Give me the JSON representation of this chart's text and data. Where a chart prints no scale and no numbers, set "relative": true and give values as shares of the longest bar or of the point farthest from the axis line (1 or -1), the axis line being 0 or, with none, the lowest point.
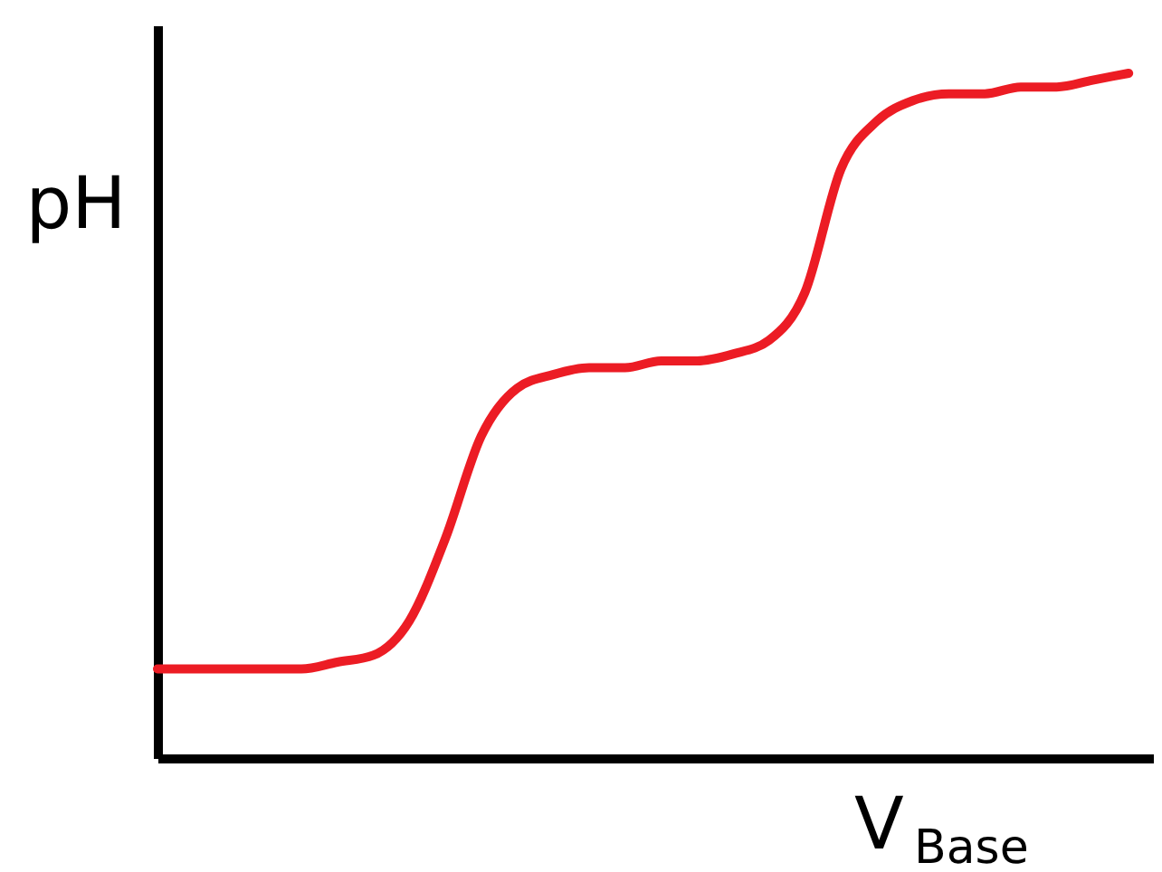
{
  "chart_data": {
    "type": "line",
    "relative": true,
    "xlabel": "V$_{Base}$",
    "ylabel": "pH",
    "grid": false,
    "tick_labels": false,
    "categories": [
      null,
      null,
      null,
      null,
      null,
      null,
      null,
      null,
      null,
      null,
      null,
      null,
      null,
      null,
      null,
      null,
      null,
      null,
      null,
      null,
      null,
      null,
      null,
      null,
      null,
      null,
      null,
      null
    ],
    "series": [
      {
        "color": "#ec1c24",
        "values": [
          0.13,
          0.13,
          0.13,
          0.13,
          0.13,
          0.14,
          0.15,
          0.2,
          0.32,
          0.47,
          0.54,
          0.56,
          0.57,
          0.57,
          0.58,
          0.58,
          0.59,
          0.61,
          0.68,
          0.86,
          0.93,
          0.96,
          0.97,
          0.97,
          0.98,
          0.98,
          0.99,
          1
        ]
      }
    ]
  }
}
